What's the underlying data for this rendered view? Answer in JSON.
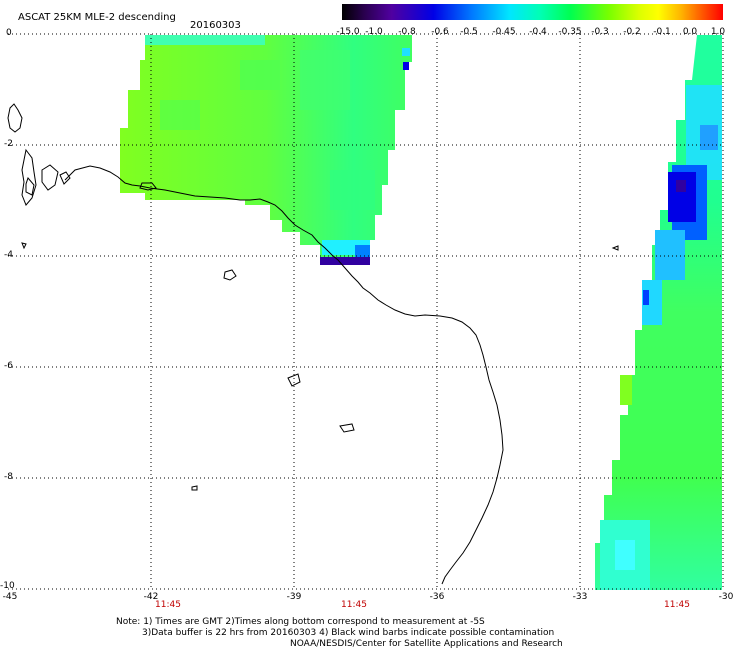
{
  "header": {
    "title": "ASCAT 25KM MLE-2 descending",
    "date": "20160303"
  },
  "colorbar": {
    "ticks": [
      "-15.0",
      "-1.0",
      "-0.8",
      "-0.6",
      "-0.5",
      "-0.45",
      "-0.4",
      "-0.35",
      "-0.3",
      "-0.2",
      "-0.1",
      "0.0",
      "1.0"
    ]
  },
  "axes": {
    "lat_labels": [
      "0",
      "-2",
      "-4",
      "-6",
      "-8",
      "-10"
    ],
    "lon_labels": [
      "-45",
      "-42",
      "-39",
      "-36",
      "-33",
      "-30"
    ],
    "pass_times": [
      "11:45",
      "11:45",
      "11:45"
    ]
  },
  "notes": [
    "Note: 1) Times are GMT 2)Times along bottom correspond to measurement at -5S",
    "3)Data buffer is 22 hrs from 20160303 4) Black wind barbs indicate possible contamination",
    "NOAA/NESDIS/Center for Satellite Applications and Research"
  ],
  "colors": {
    "grid": "#000000",
    "coast": "#000000",
    "time": "#c00000"
  }
}
